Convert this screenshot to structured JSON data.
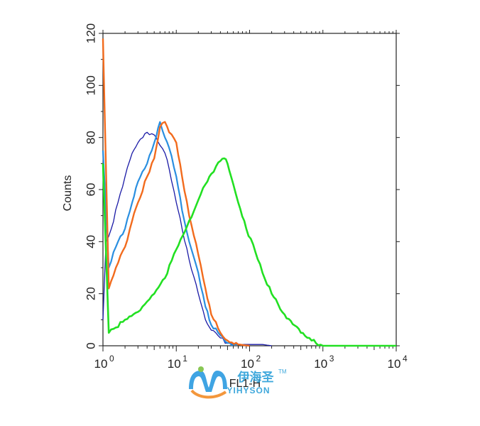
{
  "chart_data": {
    "type": "line",
    "title": "",
    "xlabel": "FL1-H",
    "ylabel": "Counts",
    "x_scale": "log",
    "xlim": [
      1,
      10000
    ],
    "ylim": [
      0,
      120
    ],
    "x_ticks": [
      {
        "base": "10",
        "exp": "0",
        "value": 1
      },
      {
        "base": "10",
        "exp": "1",
        "value": 10
      },
      {
        "base": "10",
        "exp": "2",
        "value": 100
      },
      {
        "base": "10",
        "exp": "3",
        "value": 1000
      },
      {
        "base": "10",
        "exp": "4",
        "value": 10000
      }
    ],
    "y_ticks": [
      "0",
      "20",
      "40",
      "60",
      "80",
      "100",
      "120"
    ],
    "grid": false,
    "series": [
      {
        "color": "#1a1aa6",
        "stroke_width": 1.3,
        "x": [
          1,
          1.1,
          1.3,
          1.6,
          2,
          2.5,
          3,
          3.5,
          4,
          5,
          6,
          7,
          8,
          10,
          12,
          15,
          20,
          25,
          30,
          40,
          50,
          70,
          100,
          150,
          200
        ],
        "y": [
          10,
          40,
          45,
          55,
          65,
          74,
          78,
          80,
          82,
          81,
          77,
          74,
          68,
          55,
          45,
          33,
          20,
          10,
          6,
          3,
          1,
          0.5,
          0.5,
          0.5,
          0
        ]
      },
      {
        "color": "#2a8fe0",
        "stroke_width": 2.2,
        "x": [
          1,
          1.2,
          1.5,
          2,
          2.5,
          3,
          4,
          5,
          6,
          7,
          8,
          10,
          12,
          15,
          20,
          25,
          30,
          40,
          50,
          70,
          100
        ],
        "y": [
          75,
          30,
          38,
          45,
          55,
          63,
          70,
          78,
          86,
          80,
          76,
          65,
          52,
          40,
          28,
          15,
          8,
          4,
          1,
          0.5,
          0
        ]
      },
      {
        "color": "#f26b1d",
        "stroke_width": 2.4,
        "x": [
          1,
          1.2,
          1.5,
          2,
          2.5,
          3,
          4,
          5,
          6,
          7,
          8,
          10,
          12,
          15,
          20,
          25,
          30,
          40,
          50,
          70,
          100
        ],
        "y": [
          118,
          22,
          30,
          38,
          48,
          55,
          65,
          72,
          84,
          86,
          82,
          78,
          65,
          50,
          35,
          22,
          12,
          5,
          2,
          0.5,
          0
        ]
      },
      {
        "color": "#22e022",
        "stroke_width": 2.6,
        "x": [
          1,
          1.2,
          1.5,
          2,
          3,
          4,
          5,
          7,
          10,
          15,
          20,
          25,
          30,
          35,
          40,
          45,
          50,
          60,
          70,
          90,
          120,
          150,
          200,
          300,
          500,
          700,
          1000,
          10000
        ],
        "y": [
          70,
          5,
          7,
          10,
          13,
          17,
          20,
          26,
          37,
          48,
          56,
          62,
          66,
          69,
          71,
          72,
          70,
          62,
          55,
          45,
          36,
          28,
          20,
          12,
          5,
          2,
          0,
          0
        ]
      }
    ]
  },
  "watermark": {
    "chinese_text": "伊海圣",
    "english_text": "YIHYSON",
    "trademark": "TM"
  }
}
